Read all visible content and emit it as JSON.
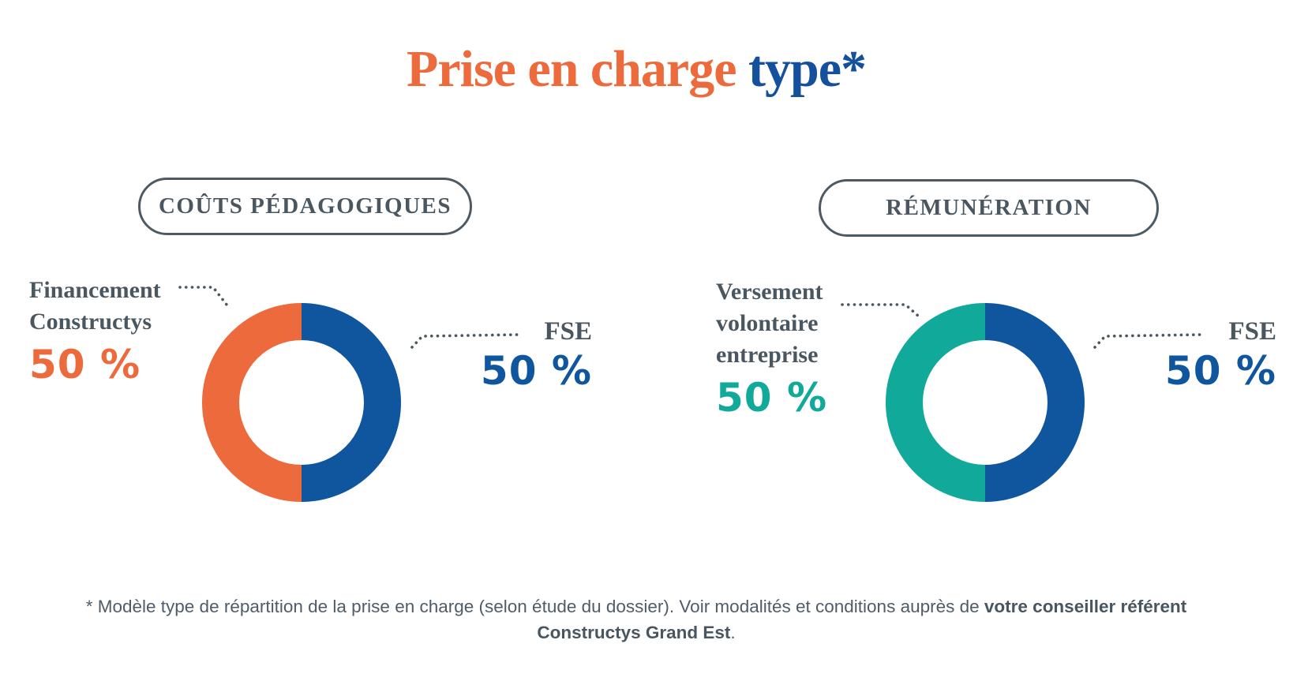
{
  "title": {
    "part1": "Prise en charge ",
    "part2": "type*"
  },
  "colors": {
    "orange": "#ec6a3b",
    "blue": "#10569e",
    "teal": "#10a99a",
    "title_blue": "#14509c",
    "text_slate": "#4a5761",
    "footnote_gray": "#4f5c68",
    "background": "#ffffff"
  },
  "left_chart": {
    "pill_label": "COÛTS PÉDAGOGIQUES",
    "label_line1": "Financement",
    "label_line2": "Constructys",
    "label_pct": "50 %",
    "fse_label": "FSE",
    "fse_pct": "50 %"
  },
  "right_chart": {
    "pill_label": "RÉMUNÉRATION",
    "label_line1": "Versement",
    "label_line2": "volontaire",
    "label_line3": "entreprise",
    "label_pct": "50 %",
    "fse_label": "FSE",
    "fse_pct": "50 %"
  },
  "footnote": {
    "line1_text": "* Modèle type de répartition de la prise en charge (selon étude du dossier). Voir modalités et conditions auprès de ",
    "line1_bold": "votre conseiller référent",
    "line2_bold": "Constructys Grand Est",
    "line2_tail": "."
  },
  "chart_data": [
    {
      "type": "pie",
      "subtype": "donut",
      "title": "COÛTS PÉDAGOGIQUES",
      "direction": "counterclockwise-from-top",
      "legend_position": "sides",
      "segments": [
        {
          "label": "Financement Constructys",
          "value": 50,
          "color": "#ec6a3b"
        },
        {
          "label": "FSE",
          "value": 50,
          "color": "#10569e"
        }
      ]
    },
    {
      "type": "pie",
      "subtype": "donut",
      "title": "RÉMUNÉRATION",
      "direction": "counterclockwise-from-top",
      "legend_position": "sides",
      "segments": [
        {
          "label": "Versement volontaire entreprise",
          "value": 50,
          "color": "#10a99a"
        },
        {
          "label": "FSE",
          "value": 50,
          "color": "#10569e"
        }
      ]
    }
  ]
}
